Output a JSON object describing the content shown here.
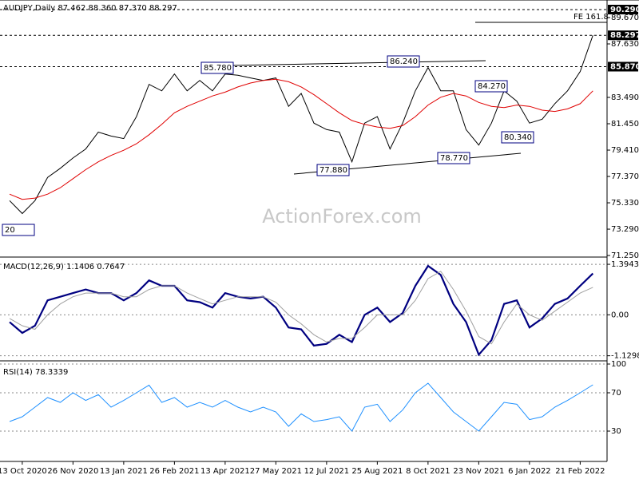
{
  "chart_data": [
    {
      "type": "line",
      "title": "AUDJPY,Daily 87.462 88.360 87.370 88.297",
      "watermark": "ActionForex.com",
      "ylim": [
        71.13,
        91.03
      ],
      "yticks": [
        {
          "value": 71.25,
          "label": "71.250"
        },
        {
          "value": 73.29,
          "label": "73.290"
        },
        {
          "value": 75.33,
          "label": "75.330"
        },
        {
          "value": 77.37,
          "label": "77.370"
        },
        {
          "value": 79.41,
          "label": "79.410"
        },
        {
          "value": 81.45,
          "label": "81.450"
        },
        {
          "value": 83.49,
          "label": "83.490"
        },
        {
          "value": 87.63,
          "label": "87.630"
        },
        {
          "value": 89.67,
          "label": "89.670"
        }
      ],
      "markers": [
        {
          "value": 90.29,
          "label": "90.290"
        },
        {
          "value": 88.297,
          "label": "88.297"
        },
        {
          "value": 85.87,
          "label": "85.870"
        }
      ],
      "annotations": [
        "FE 161.8",
        "85.780",
        "86.240",
        "84.270",
        "77.880",
        "78.770",
        "80.340",
        "20"
      ],
      "series": [
        {
          "color": "#000000",
          "values": [
            75.5,
            74.5,
            75.5,
            77.3,
            78.0,
            78.8,
            79.5,
            80.8,
            80.5,
            80.3,
            82.0,
            84.5,
            84.0,
            85.3,
            84.0,
            84.8,
            84.0,
            85.3,
            85.2,
            85.0,
            84.8,
            85.0,
            82.8,
            83.8,
            81.5,
            81.0,
            80.8,
            78.5,
            81.5,
            82.0,
            79.5,
            81.5,
            84.0,
            85.8,
            84.0,
            84.0,
            81.0,
            79.8,
            81.5,
            84.0,
            83.2,
            81.5,
            81.8,
            83.0,
            84.0,
            85.5,
            88.3
          ]
        },
        {
          "color": "#e00000",
          "values": [
            76.0,
            75.6,
            75.7,
            76.0,
            76.5,
            77.2,
            77.9,
            78.5,
            79.0,
            79.4,
            79.9,
            80.6,
            81.4,
            82.3,
            82.8,
            83.2,
            83.6,
            83.9,
            84.3,
            84.6,
            84.8,
            84.9,
            84.7,
            84.3,
            83.7,
            83.0,
            82.3,
            81.7,
            81.4,
            81.2,
            81.1,
            81.3,
            82.0,
            82.9,
            83.5,
            83.8,
            83.6,
            83.1,
            82.8,
            82.7,
            82.9,
            82.8,
            82.5,
            82.4,
            82.6,
            83.0,
            84.0
          ]
        }
      ]
    },
    {
      "type": "line",
      "title": "MACD(12,26,9) 1.1406 0.7647",
      "ylim": [
        -1.27,
        1.55
      ],
      "yticks": [
        1.3943,
        {
          "value": 0,
          "label": "0.00"
        },
        -1.1298
      ],
      "grid": true,
      "series": [
        {
          "color": "#000080",
          "values": [
            -0.2,
            -0.5,
            -0.3,
            0.4,
            0.5,
            0.6,
            0.7,
            0.6,
            0.6,
            0.4,
            0.6,
            0.95,
            0.8,
            0.8,
            0.4,
            0.35,
            0.2,
            0.6,
            0.5,
            0.45,
            0.5,
            0.2,
            -0.35,
            -0.4,
            -0.85,
            -0.8,
            -0.55,
            -0.75,
            0.0,
            0.2,
            -0.2,
            0.05,
            0.8,
            1.35,
            1.1,
            0.3,
            -0.2,
            -1.1,
            -0.7,
            0.3,
            0.4,
            -0.35,
            -0.1,
            0.3,
            0.45,
            0.8,
            1.14
          ]
        },
        {
          "color": "#a0a0a0",
          "values": [
            -0.1,
            -0.3,
            -0.4,
            0.0,
            0.3,
            0.5,
            0.6,
            0.6,
            0.6,
            0.5,
            0.5,
            0.7,
            0.8,
            0.8,
            0.6,
            0.45,
            0.3,
            0.4,
            0.5,
            0.5,
            0.5,
            0.35,
            0.0,
            -0.25,
            -0.55,
            -0.75,
            -0.65,
            -0.65,
            -0.35,
            0.0,
            0.0,
            0.0,
            0.4,
            1.0,
            1.2,
            0.7,
            0.1,
            -0.6,
            -0.8,
            -0.2,
            0.3,
            0.0,
            -0.15,
            0.1,
            0.35,
            0.6,
            0.76
          ]
        }
      ]
    },
    {
      "type": "line",
      "title": "RSI(14) 78.3339",
      "ylim": [
        0,
        100
      ],
      "yticks": [
        30,
        70,
        100
      ],
      "grid": true,
      "categories": [
        null,
        "13 Oct 2020",
        null,
        null,
        null,
        "26 Nov 2020",
        null,
        null,
        null,
        "13 Jan 2021",
        null,
        null,
        null,
        "26 Feb 2021",
        null,
        null,
        null,
        "13 Apr 2021",
        null,
        null,
        null,
        "27 May 2021",
        null,
        null,
        null,
        "12 Jul 2021",
        null,
        null,
        null,
        "25 Aug 2021",
        null,
        null,
        null,
        "8 Oct 2021",
        null,
        null,
        null,
        "23 Nov 2021",
        null,
        null,
        null,
        "6 Jan 2022",
        null,
        null,
        null,
        "21 Feb 2022",
        null
      ],
      "series": [
        {
          "color": "#1e90ff",
          "values": [
            40,
            45,
            55,
            65,
            60,
            70,
            62,
            68,
            55,
            62,
            70,
            78,
            60,
            65,
            55,
            60,
            55,
            62,
            55,
            50,
            55,
            50,
            35,
            48,
            40,
            42,
            45,
            30,
            55,
            58,
            40,
            52,
            70,
            80,
            65,
            50,
            40,
            30,
            45,
            60,
            58,
            42,
            45,
            55,
            62,
            70,
            78.3
          ]
        }
      ]
    }
  ]
}
